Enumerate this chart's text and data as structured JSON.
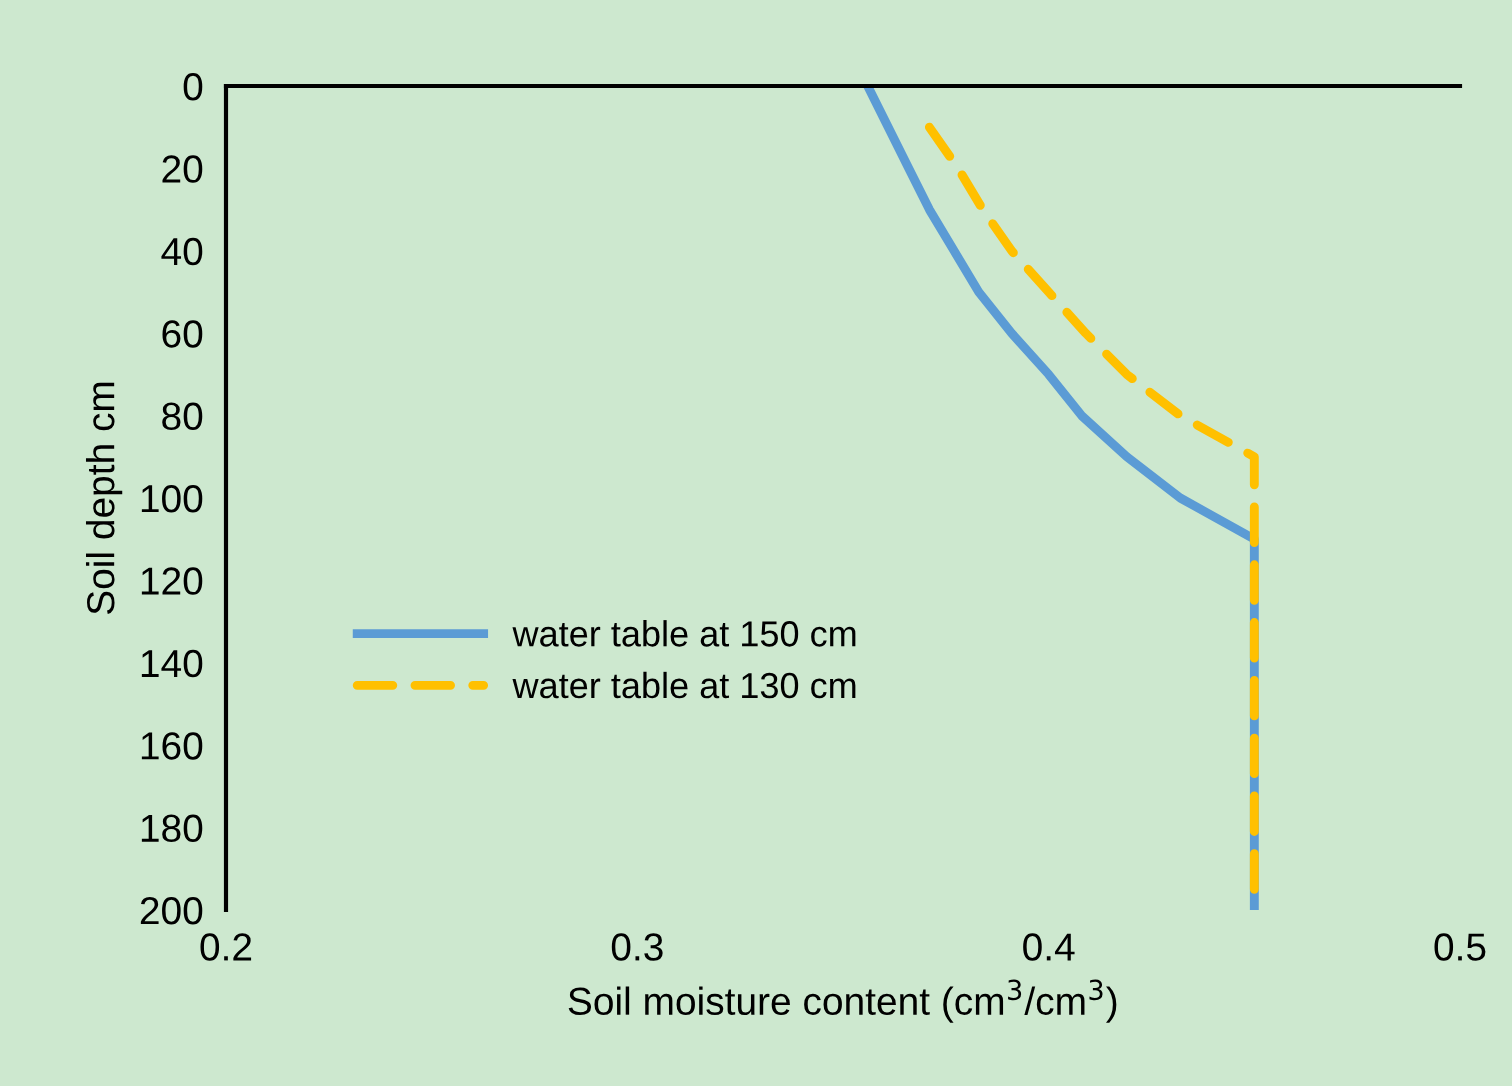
{
  "chart_data": {
    "type": "line",
    "xlabel": "Soil moisture content (cm$^{3}$/cm$^{3}$)",
    "ylabel": "Soil depth cm",
    "xlim": [
      0.2,
      0.5
    ],
    "xticks": [
      0.2,
      0.3,
      0.4,
      0.5
    ],
    "ylim": [
      200,
      0
    ],
    "yticks": [
      0,
      20,
      40,
      60,
      80,
      100,
      120,
      140,
      160,
      180,
      200
    ],
    "grid": false,
    "legend": "left",
    "series": [
      {
        "name": "water table at 150 cm",
        "color": "#5b9bd5",
        "line_style": "solid",
        "x": [
          0.356,
          0.361,
          0.366,
          0.371,
          0.377,
          0.383,
          0.391,
          0.4,
          0.408,
          0.419,
          0.432,
          0.45,
          0.45
        ],
        "values": [
          0,
          10,
          20,
          30,
          40,
          50,
          60,
          70,
          80,
          90,
          100,
          110,
          200
        ]
      },
      {
        "name": "water table at 130 cm",
        "color": "#ffc000",
        "line_style": "dashed",
        "x": [
          0.371,
          0.378,
          0.384,
          0.391,
          0.4,
          0.409,
          0.419,
          0.432,
          0.45,
          0.45
        ],
        "values": [
          10,
          20,
          30,
          40,
          50,
          60,
          70,
          80,
          90,
          200
        ]
      }
    ]
  }
}
